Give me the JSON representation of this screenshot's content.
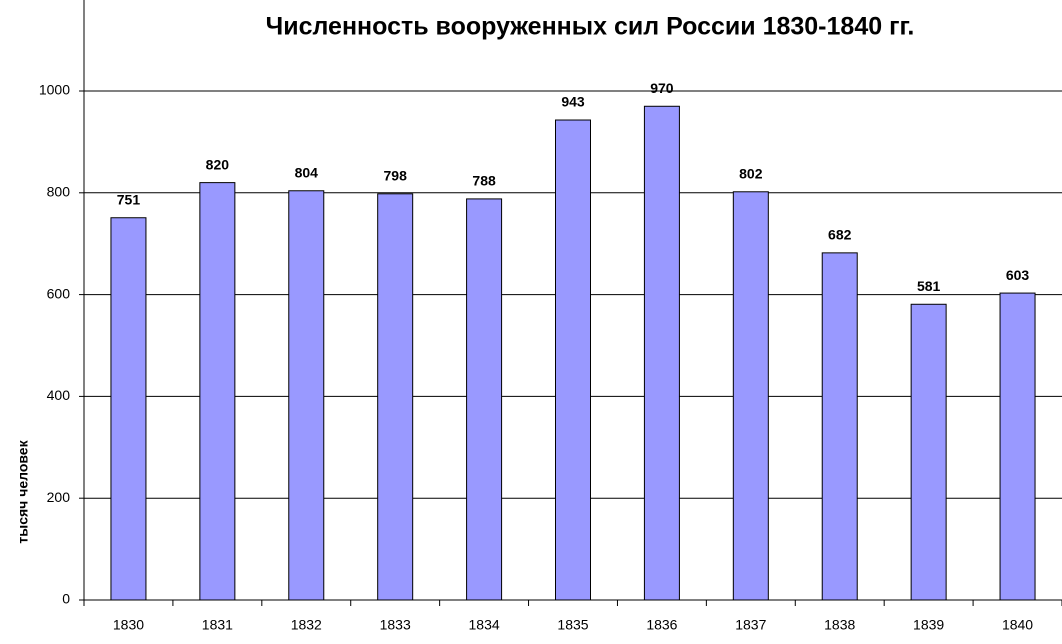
{
  "chart_data": {
    "type": "bar",
    "title": "Численность вооруженных сил России 1830-1840 гг.",
    "y_label": "тысяч человек",
    "categories": [
      "1830",
      "1831",
      "1832",
      "1833",
      "1834",
      "1835",
      "1836",
      "1837",
      "1838",
      "1839",
      "1840"
    ],
    "values": [
      751,
      820,
      804,
      798,
      788,
      943,
      970,
      802,
      682,
      581,
      603
    ],
    "color": "#9999ff",
    "ylim": [
      0,
      1200
    ],
    "yticks": [
      0,
      200,
      400,
      600,
      800,
      1000
    ],
    "grid": true
  }
}
